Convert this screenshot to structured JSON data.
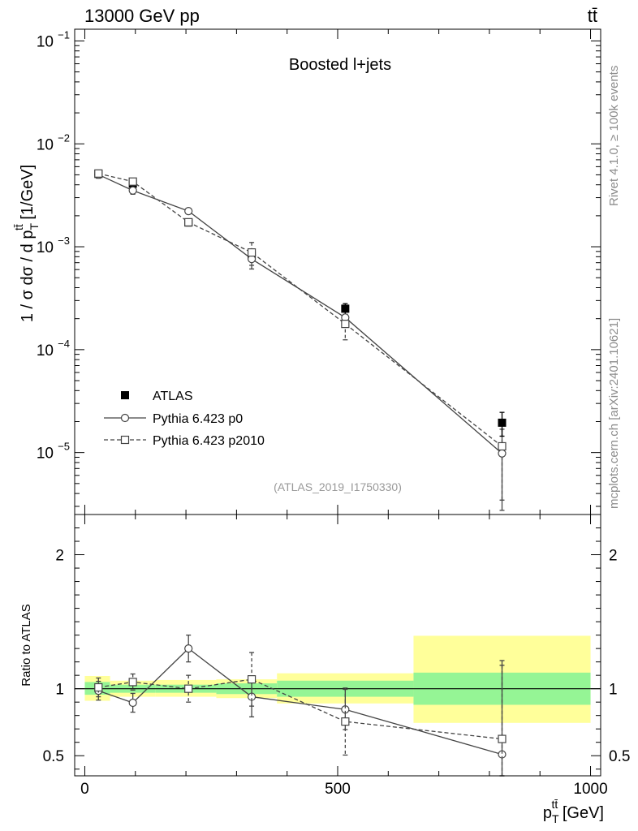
{
  "header": {
    "energy_label": "13000 GeV pp",
    "process_label": "tt̄"
  },
  "side_text": {
    "rivet": "Rivet 4.1.0, ≥ 100k events",
    "source": "mcplots.cern.ch [arXiv:2401.10621]"
  },
  "chart_data": {
    "type": "line",
    "title": "Boosted l+jets",
    "analysis_id": "(ATLAS_2019_I1750330)",
    "xlabel": "p_T^{tt̄} [GeV]",
    "ylabel": "1 / σ dσ / d p_T^{tt̄} [1/GeV]",
    "ratio_ylabel": "Ratio to ATLAS",
    "xlim": [
      -20,
      1020
    ],
    "ylim": [
      2.5e-06,
      0.13
    ],
    "ratio_ylim": [
      0.35,
      2.3
    ],
    "x_ticks": [
      0,
      500,
      1000
    ],
    "x_tick_labels": [
      "0",
      "500",
      "1000"
    ],
    "y_ticks": [
      0.1,
      0.01,
      0.001,
      0.0001,
      1e-05
    ],
    "y_tick_labels": [
      "10^-1",
      "10^-2",
      "10^-3",
      "10^-4",
      "10^-5"
    ],
    "ratio_ticks": [
      0.5,
      1,
      2
    ],
    "ratio_tick_labels": [
      "0.5",
      "1",
      "2"
    ],
    "bins": [
      [
        0,
        50
      ],
      [
        50,
        140
      ],
      [
        140,
        260
      ],
      [
        260,
        380
      ],
      [
        380,
        650
      ],
      [
        650,
        1000
      ]
    ],
    "legend": [
      "ATLAS",
      "Pythia 6.423 p0",
      "Pythia 6.423 p2010"
    ],
    "series": [
      {
        "name": "ATLAS",
        "style": "marker-square",
        "x": [
          27,
          95,
          205,
          330,
          515,
          825
        ],
        "y": [
          0.0051,
          0.0041,
          0.00172,
          0.00082,
          0.00025,
          1.95e-05
        ],
        "err_rel_inner": [
          0.05,
          0.04,
          0.05,
          0.06,
          0.06,
          0.12
        ],
        "err_rel_outer": [
          0.09,
          0.08,
          0.07,
          0.08,
          0.12,
          0.26
        ]
      },
      {
        "name": "Pythia 6.423 p0",
        "style": "solid-circle",
        "x": [
          27,
          95,
          205,
          330,
          515,
          825
        ],
        "y": [
          0.00502,
          0.00352,
          0.00222,
          0.00076,
          0.000205,
          9.8e-06
        ],
        "err_rel": [
          0.05,
          0.08,
          0.06,
          0.2,
          0.15,
          0.72
        ],
        "ratio": [
          0.985,
          0.895,
          1.3,
          0.94,
          0.845,
          0.51
        ],
        "ratio_err": [
          0.07,
          0.07,
          0.1,
          0.15,
          0.15,
          0.7
        ]
      },
      {
        "name": "Pythia 6.423 p2010",
        "style": "dashed-square",
        "x": [
          27,
          95,
          205,
          330,
          515,
          825
        ],
        "y": [
          0.00515,
          0.0043,
          0.00173,
          0.00088,
          0.000178,
          1.15e-05
        ],
        "err_rel": [
          0.07,
          0.07,
          0.08,
          0.25,
          0.3,
          0.7
        ],
        "ratio": [
          1.01,
          1.05,
          1.0,
          1.07,
          0.755,
          0.625
        ],
        "ratio_err": [
          0.07,
          0.06,
          0.1,
          0.2,
          0.25,
          0.55
        ]
      }
    ],
    "ratio_bands": {
      "green": [
        [
          0.955,
          1.05
        ],
        [
          0.97,
          1.03
        ],
        [
          0.97,
          1.03
        ],
        [
          0.96,
          1.04
        ],
        [
          0.94,
          1.06
        ],
        [
          0.88,
          1.12
        ]
      ],
      "yellow": [
        [
          0.91,
          1.095
        ],
        [
          0.94,
          1.06
        ],
        [
          0.94,
          1.065
        ],
        [
          0.93,
          1.07
        ],
        [
          0.89,
          1.115
        ],
        [
          0.745,
          1.395
        ]
      ]
    },
    "colors": {
      "data": "#000000",
      "mc": "#444444",
      "band_green": "#95f595",
      "band_yellow": "#ffff9a"
    }
  }
}
